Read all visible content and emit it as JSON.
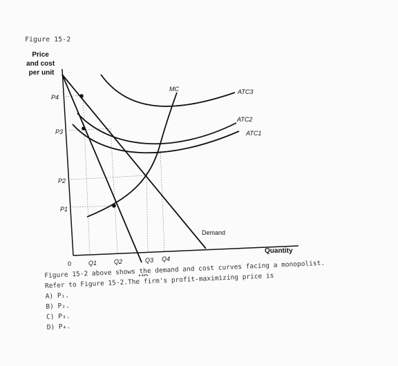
{
  "figure": {
    "title": "Figure 15-2",
    "y_axis_label": [
      "Price",
      "and cost",
      "per unit"
    ],
    "x_axis_label": "Quantity",
    "origin_label": "0",
    "price_labels": [
      "P4",
      "P3",
      "P2",
      "P1"
    ],
    "quantity_labels": [
      "Q1",
      "Q2",
      "Q3",
      "Q4"
    ],
    "curve_labels": {
      "mc": "MC",
      "mr": "MR",
      "demand": "Demand",
      "atc3": "ATC3",
      "atc2": "ATC2",
      "atc1": "ATC1"
    }
  },
  "question": {
    "line1": "Figure 15-2 above shows the demand and cost curves facing a monopolist.",
    "line2": "Refer to Figure 15-2.The firm's profit-maximizing price is",
    "options": [
      "A) P₁.",
      "B) P₂.",
      "C) P₃.",
      "D) P₄."
    ]
  }
}
